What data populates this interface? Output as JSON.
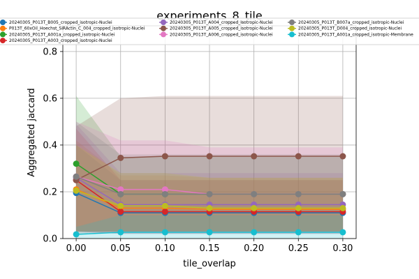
{
  "chart_data": {
    "type": "line",
    "title": "experiments_8_tile",
    "xlabel": "tile_overlap",
    "ylabel": "Aggregated jaccard",
    "x": [
      0.0,
      0.05,
      0.1,
      0.15,
      0.2,
      0.25,
      0.3
    ],
    "xticks": [
      "0.00",
      "0.05",
      "0.10",
      "0.15",
      "0.20",
      "0.25",
      "0.30"
    ],
    "yticks": [
      "0.0",
      "0.2",
      "0.4",
      "0.6",
      "0.8"
    ],
    "xlim": [
      -0.015,
      0.315
    ],
    "ylim": [
      0.0,
      0.91
    ],
    "grid": true,
    "legend_position": "top",
    "series": [
      {
        "name": "20240305_P013T_B005_cropped_isotropic-Nuclei",
        "color": "#1f77b4",
        "values": [
          0.195,
          0.11,
          0.11,
          0.11,
          0.11,
          0.11,
          0.11
        ],
        "band": [
          [
            0.03,
            0.4
          ],
          [
            0.02,
            0.25
          ],
          [
            0.02,
            0.25
          ],
          [
            0.02,
            0.25
          ],
          [
            0.02,
            0.25
          ],
          [
            0.02,
            0.25
          ],
          [
            0.02,
            0.25
          ]
        ]
      },
      {
        "name": "P013T_60xOil_Hoechst_SiRActin_C_004_cropped_isotropic-Nuclei",
        "color": "#ff7f0e",
        "values": [
          0.21,
          0.13,
          0.13,
          0.125,
          0.125,
          0.125,
          0.125
        ],
        "band": [
          [
            0.03,
            0.42
          ],
          [
            0.03,
            0.27
          ],
          [
            0.03,
            0.27
          ],
          [
            0.03,
            0.26
          ],
          [
            0.03,
            0.26
          ],
          [
            0.03,
            0.26
          ],
          [
            0.03,
            0.26
          ]
        ]
      },
      {
        "name": "20240305_P013T_A001a_cropped_isotropic-Nuclei",
        "color": "#2ca02c",
        "values": [
          0.32,
          0.19,
          0.19,
          0.19,
          0.19,
          0.19,
          0.19
        ],
        "band": [
          [
            0.03,
            0.61
          ],
          [
            0.03,
            0.35
          ],
          [
            0.03,
            0.35
          ],
          [
            0.03,
            0.35
          ],
          [
            0.03,
            0.35
          ],
          [
            0.03,
            0.35
          ],
          [
            0.03,
            0.35
          ]
        ]
      },
      {
        "name": "20240305_P013T_A003_cropped_isotropic-Nuclei",
        "color": "#d62728",
        "values": [
          0.25,
          0.115,
          0.115,
          0.115,
          0.115,
          0.115,
          0.115
        ],
        "band": [
          [
            0.03,
            0.47
          ],
          [
            0.02,
            0.25
          ],
          [
            0.02,
            0.25
          ],
          [
            0.02,
            0.25
          ],
          [
            0.02,
            0.25
          ],
          [
            0.02,
            0.25
          ],
          [
            0.02,
            0.25
          ]
        ]
      },
      {
        "name": "20240305_P013T_A004_cropped_isotropic-Nuclei",
        "color": "#9467bd",
        "values": [
          0.26,
          0.145,
          0.145,
          0.145,
          0.145,
          0.145,
          0.145
        ],
        "band": [
          [
            0.03,
            0.49
          ],
          [
            0.03,
            0.28
          ],
          [
            0.03,
            0.28
          ],
          [
            0.03,
            0.28
          ],
          [
            0.03,
            0.28
          ],
          [
            0.03,
            0.28
          ],
          [
            0.03,
            0.28
          ]
        ]
      },
      {
        "name": "20240305_P013T_A005_cropped_isotropic-Nuclei",
        "color": "#8c564b",
        "values": [
          0.25,
          0.345,
          0.352,
          0.352,
          0.352,
          0.352,
          0.352
        ],
        "band": [
          [
            0.02,
            0.48
          ],
          [
            0.03,
            0.6
          ],
          [
            0.03,
            0.61
          ],
          [
            0.03,
            0.61
          ],
          [
            0.03,
            0.61
          ],
          [
            0.03,
            0.61
          ],
          [
            0.03,
            0.61
          ]
        ]
      },
      {
        "name": "20240305_P013T_A006_cropped_isotropic-Nuclei",
        "color": "#e377c2",
        "values": [
          0.265,
          0.21,
          0.21,
          0.19,
          0.19,
          0.19,
          0.19
        ],
        "band": [
          [
            0.03,
            0.5
          ],
          [
            0.03,
            0.42
          ],
          [
            0.03,
            0.42
          ],
          [
            0.03,
            0.39
          ],
          [
            0.03,
            0.39
          ],
          [
            0.03,
            0.39
          ],
          [
            0.03,
            0.39
          ]
        ]
      },
      {
        "name": "20240305_P013T_B007a_cropped_isotropic-Nuclei",
        "color": "#7f7f7f",
        "values": [
          0.265,
          0.19,
          0.19,
          0.19,
          0.19,
          0.19,
          0.19
        ],
        "band": [
          [
            0.03,
            0.5
          ],
          [
            0.03,
            0.36
          ],
          [
            0.03,
            0.36
          ],
          [
            0.03,
            0.36
          ],
          [
            0.03,
            0.36
          ],
          [
            0.03,
            0.36
          ],
          [
            0.03,
            0.36
          ]
        ]
      },
      {
        "name": "20240305_P013T_D004_cropped_isotropic-Nuclei",
        "color": "#bcbd22",
        "values": [
          0.205,
          0.14,
          0.14,
          0.13,
          0.13,
          0.13,
          0.13
        ],
        "band": [
          [
            0.03,
            0.4
          ],
          [
            0.03,
            0.28
          ],
          [
            0.03,
            0.28
          ],
          [
            0.03,
            0.26
          ],
          [
            0.03,
            0.26
          ],
          [
            0.03,
            0.26
          ],
          [
            0.03,
            0.26
          ]
        ]
      },
      {
        "name": "20240305_P013T_A001a_cropped_isotropic-Membrane",
        "color": "#17becf",
        "values": [
          0.018,
          0.027,
          0.027,
          0.027,
          0.027,
          0.027,
          0.027
        ],
        "band": [
          [
            0.0,
            0.05
          ],
          [
            0.0,
            0.1
          ],
          [
            0.0,
            0.1
          ],
          [
            0.0,
            0.1
          ],
          [
            0.0,
            0.1
          ],
          [
            0.0,
            0.1
          ],
          [
            0.0,
            0.1
          ]
        ]
      }
    ],
    "legend_order": [
      0,
      1,
      2,
      3,
      4,
      5,
      6,
      7,
      8,
      9
    ]
  }
}
